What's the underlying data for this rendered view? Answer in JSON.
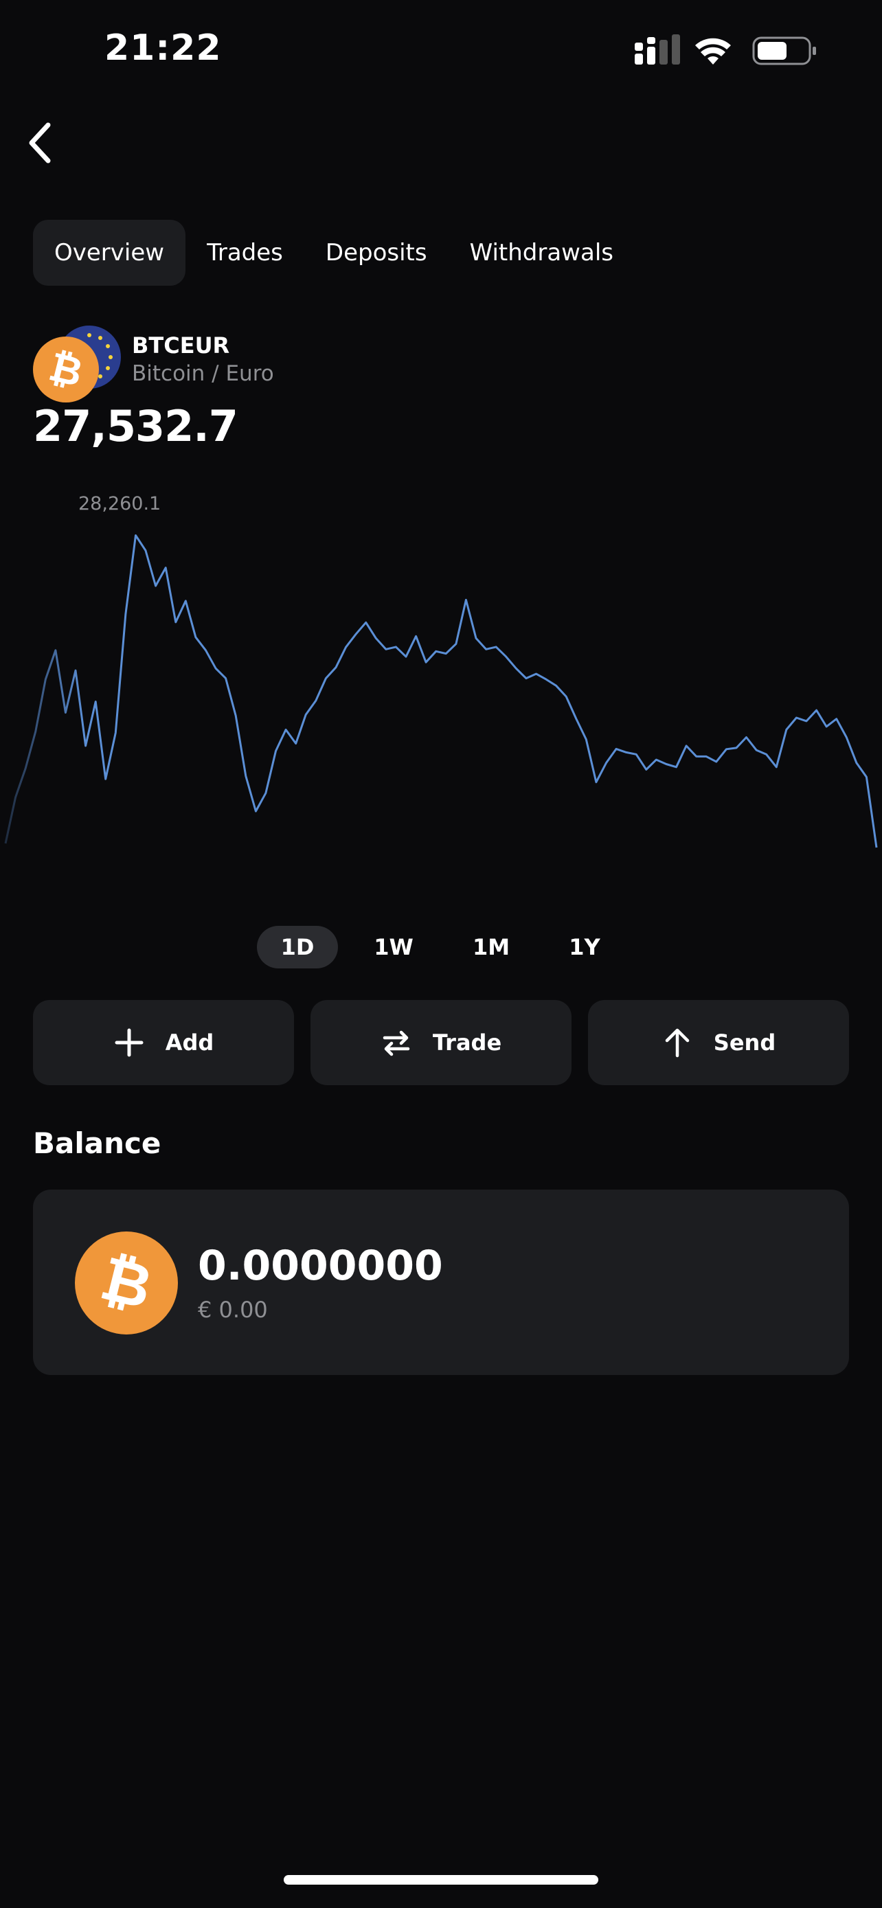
{
  "status_bar": {
    "time": "21:22",
    "icons": [
      "cellular-signal-icon",
      "wifi-icon",
      "battery-icon"
    ]
  },
  "nav": {
    "back_icon": "chevron-left-icon"
  },
  "tabs": [
    {
      "label": "Overview",
      "active": true
    },
    {
      "label": "Trades",
      "active": false
    },
    {
      "label": "Deposits",
      "active": false
    },
    {
      "label": "Withdrawals",
      "active": false
    }
  ],
  "ticker": {
    "symbol": "BTCEUR",
    "name": "Bitcoin / Euro",
    "price": "27,532.7",
    "icons": [
      "bitcoin-icon",
      "euro-flag-icon"
    ]
  },
  "chart_data": {
    "type": "line",
    "high_label": "28,260.1",
    "line_color": "#5b8fd6",
    "series": [
      {
        "values": [
          27300,
          27450,
          27520,
          27650,
          27800,
          27900,
          27700,
          27850,
          27600,
          27750,
          27500,
          27650,
          28000,
          28260,
          28200,
          28100,
          28150,
          28000,
          28050,
          27950,
          27900,
          27850,
          27800,
          27700,
          27500,
          27400,
          27450,
          27600,
          27650,
          27620,
          27700,
          27750,
          27800,
          27850,
          27900,
          27950,
          27980,
          27950,
          27900,
          27920,
          27880,
          27950,
          27850,
          27900,
          27880,
          27920,
          28050,
          27950,
          27900,
          27920,
          27880,
          27850,
          27800,
          27830,
          27800,
          27790,
          27750,
          27700,
          27620,
          27500,
          27550,
          27600,
          27570,
          27580,
          27520,
          27560,
          27540,
          27550,
          27600,
          27580,
          27570,
          27560,
          27580,
          27600,
          27620,
          27590,
          27570,
          27550,
          27650,
          27700,
          27680,
          27720,
          27650,
          27690,
          27620,
          27550,
          27500,
          27300
        ]
      }
    ],
    "ranges": [
      "1D",
      "1W",
      "1M",
      "1Y"
    ],
    "active_range": "1D",
    "grid": false
  },
  "actions": [
    {
      "label": "Add",
      "icon": "plus-icon"
    },
    {
      "label": "Trade",
      "icon": "swap-arrows-icon"
    },
    {
      "label": "Send",
      "icon": "arrow-up-icon"
    }
  ],
  "balance": {
    "title": "Balance",
    "amount": "0.0000000",
    "fiat": "€ 0.00",
    "icon": "bitcoin-icon"
  },
  "colors": {
    "background": "#0a0a0c",
    "card": "#1c1d20",
    "bitcoin_orange": "#f0973a",
    "euro_blue": "#2a3d8f",
    "muted_text": "#8f9094"
  }
}
